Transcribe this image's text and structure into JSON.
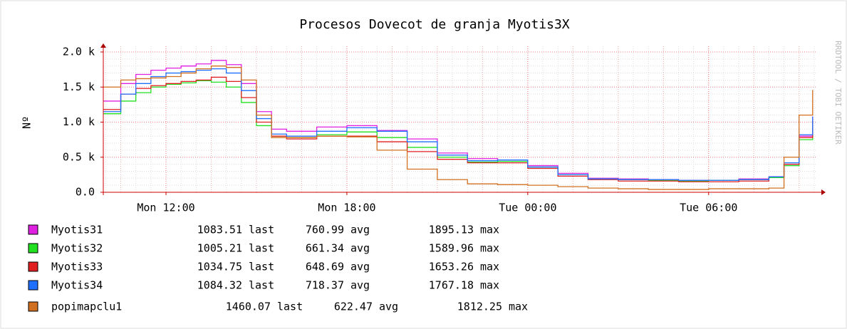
{
  "chart_data": {
    "type": "line",
    "title": "Procesos Dovecot de granja Myotis3X",
    "y_label": "Nº",
    "watermark": "RRDTOOL / TOBI OETIKER",
    "step": true,
    "grid": true,
    "x": [
      9.92,
      10.5,
      11,
      11.5,
      12,
      12.5,
      13,
      13.5,
      14,
      14.5,
      15,
      15.5,
      16,
      17,
      18,
      19,
      20,
      21,
      22,
      23,
      24,
      25,
      26,
      27,
      28,
      29,
      30,
      31,
      32,
      32.5,
      33,
      33.45
    ],
    "xlim": [
      9.92,
      33.55
    ],
    "xticks": [
      {
        "value": 12,
        "label": "Mon 12:00"
      },
      {
        "value": 18,
        "label": "Mon 18:00"
      },
      {
        "value": 24,
        "label": "Tue 00:00"
      },
      {
        "value": 30,
        "label": "Tue 06:00"
      }
    ],
    "ylim": [
      0,
      2000
    ],
    "yticks": [
      {
        "value": 0,
        "label": "0.0"
      },
      {
        "value": 500,
        "label": "0.5 k"
      },
      {
        "value": 1000,
        "label": "1.0 k"
      },
      {
        "value": 1500,
        "label": "1.5 k"
      },
      {
        "value": 2000,
        "label": "2.0 k"
      }
    ],
    "legend_words": {
      "last": "last",
      "avg": "avg",
      "max": "max"
    },
    "series": [
      {
        "name": "Myotis31",
        "color": "#e020e0",
        "last": 1083.51,
        "avg": 760.99,
        "max": 1895.13,
        "values": [
          1300,
          1550,
          1680,
          1740,
          1770,
          1800,
          1830,
          1880,
          1820,
          1550,
          1150,
          900,
          870,
          930,
          950,
          880,
          760,
          560,
          480,
          460,
          380,
          270,
          200,
          190,
          180,
          170,
          170,
          190,
          220,
          400,
          800,
          1080
        ]
      },
      {
        "name": "Myotis32",
        "color": "#20e020",
        "last": 1005.21,
        "avg": 661.34,
        "max": 1589.96,
        "values": [
          1120,
          1300,
          1420,
          1500,
          1540,
          1560,
          1590,
          1570,
          1500,
          1280,
          950,
          800,
          780,
          820,
          860,
          780,
          640,
          500,
          430,
          440,
          360,
          250,
          190,
          180,
          170,
          160,
          170,
          180,
          210,
          380,
          750,
          1000
        ]
      },
      {
        "name": "Myotis33",
        "color": "#e02020",
        "last": 1034.75,
        "avg": 648.69,
        "max": 1653.26,
        "values": [
          1180,
          1400,
          1480,
          1520,
          1550,
          1580,
          1600,
          1640,
          1580,
          1350,
          1000,
          800,
          760,
          800,
          800,
          720,
          580,
          470,
          420,
          420,
          340,
          230,
          180,
          160,
          160,
          150,
          150,
          160,
          220,
          400,
          780,
          1030
        ]
      },
      {
        "name": "Myotis34",
        "color": "#2070ff",
        "last": 1084.32,
        "avg": 718.37,
        "max": 1767.18,
        "values": [
          1150,
          1400,
          1550,
          1650,
          1700,
          1720,
          1740,
          1760,
          1700,
          1450,
          1050,
          830,
          800,
          870,
          920,
          870,
          720,
          530,
          450,
          460,
          360,
          250,
          190,
          180,
          180,
          170,
          170,
          180,
          220,
          420,
          820,
          1080
        ]
      },
      {
        "name": "popimapclu1",
        "color": "#d07020",
        "last": 1460.07,
        "avg": 622.47,
        "max": 1812.25,
        "values": [
          1500,
          1600,
          1620,
          1630,
          1650,
          1700,
          1760,
          1800,
          1780,
          1600,
          1100,
          780,
          780,
          800,
          790,
          600,
          330,
          180,
          120,
          110,
          100,
          80,
          60,
          50,
          40,
          40,
          50,
          50,
          60,
          500,
          1100,
          1460
        ]
      }
    ]
  }
}
